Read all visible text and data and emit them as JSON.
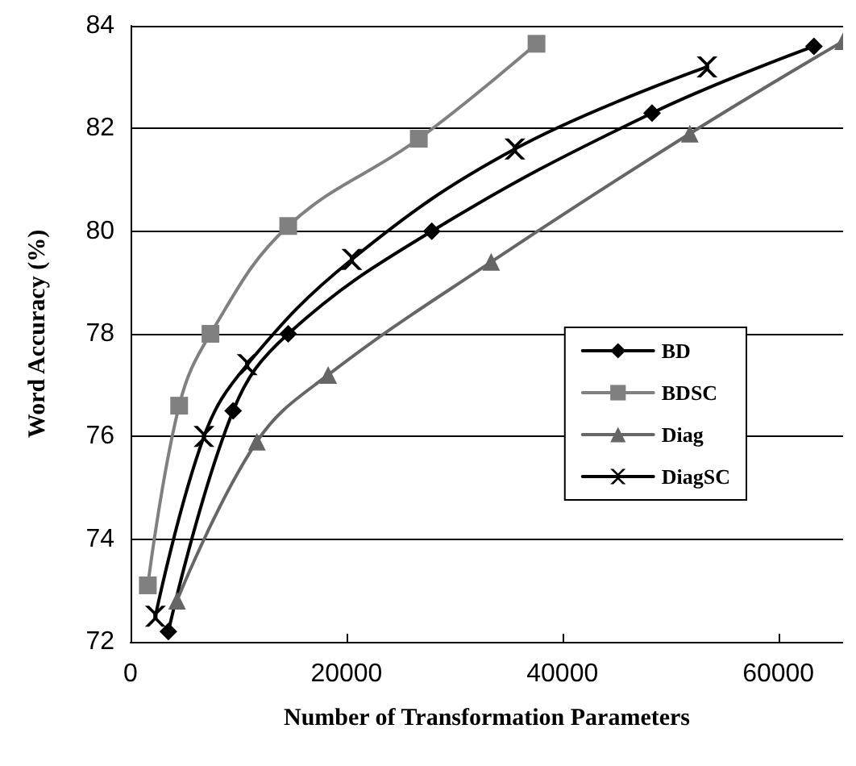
{
  "chart_data": {
    "type": "line",
    "xlabel": "Number of Transformation Parameters",
    "ylabel": "Word Accuracy (%)",
    "xlim": [
      0,
      66000
    ],
    "xticks": [
      0,
      20000,
      40000,
      60000
    ],
    "ylim": [
      72,
      84
    ],
    "yticks": [
      72,
      74,
      76,
      78,
      80,
      82,
      84
    ],
    "grid": "y",
    "legend": "right",
    "series": [
      {
        "name": "BD",
        "color": "#000000",
        "marker": "diamond",
        "x": [
          3500,
          9500,
          14600,
          27900,
          48300,
          63300
        ],
        "values": [
          72.2,
          76.5,
          78.0,
          80.0,
          82.3,
          83.6
        ]
      },
      {
        "name": "BDSC",
        "color": "#808080",
        "marker": "square",
        "x": [
          1600,
          4500,
          7400,
          14600,
          26700,
          37600
        ],
        "values": [
          73.1,
          76.6,
          78.0,
          80.1,
          81.8,
          83.65
        ]
      },
      {
        "name": "Diag",
        "color": "#666666",
        "marker": "triangle",
        "x": [
          4300,
          11700,
          18300,
          33400,
          51800,
          66000
        ],
        "values": [
          72.8,
          75.9,
          77.2,
          79.4,
          81.9,
          83.7
        ]
      },
      {
        "name": "DiagSC",
        "color": "#000000",
        "marker": "cross",
        "x": [
          2300,
          6800,
          10800,
          20500,
          35600,
          53400
        ],
        "values": [
          72.5,
          76.0,
          77.4,
          79.45,
          81.6,
          83.2
        ]
      }
    ]
  }
}
